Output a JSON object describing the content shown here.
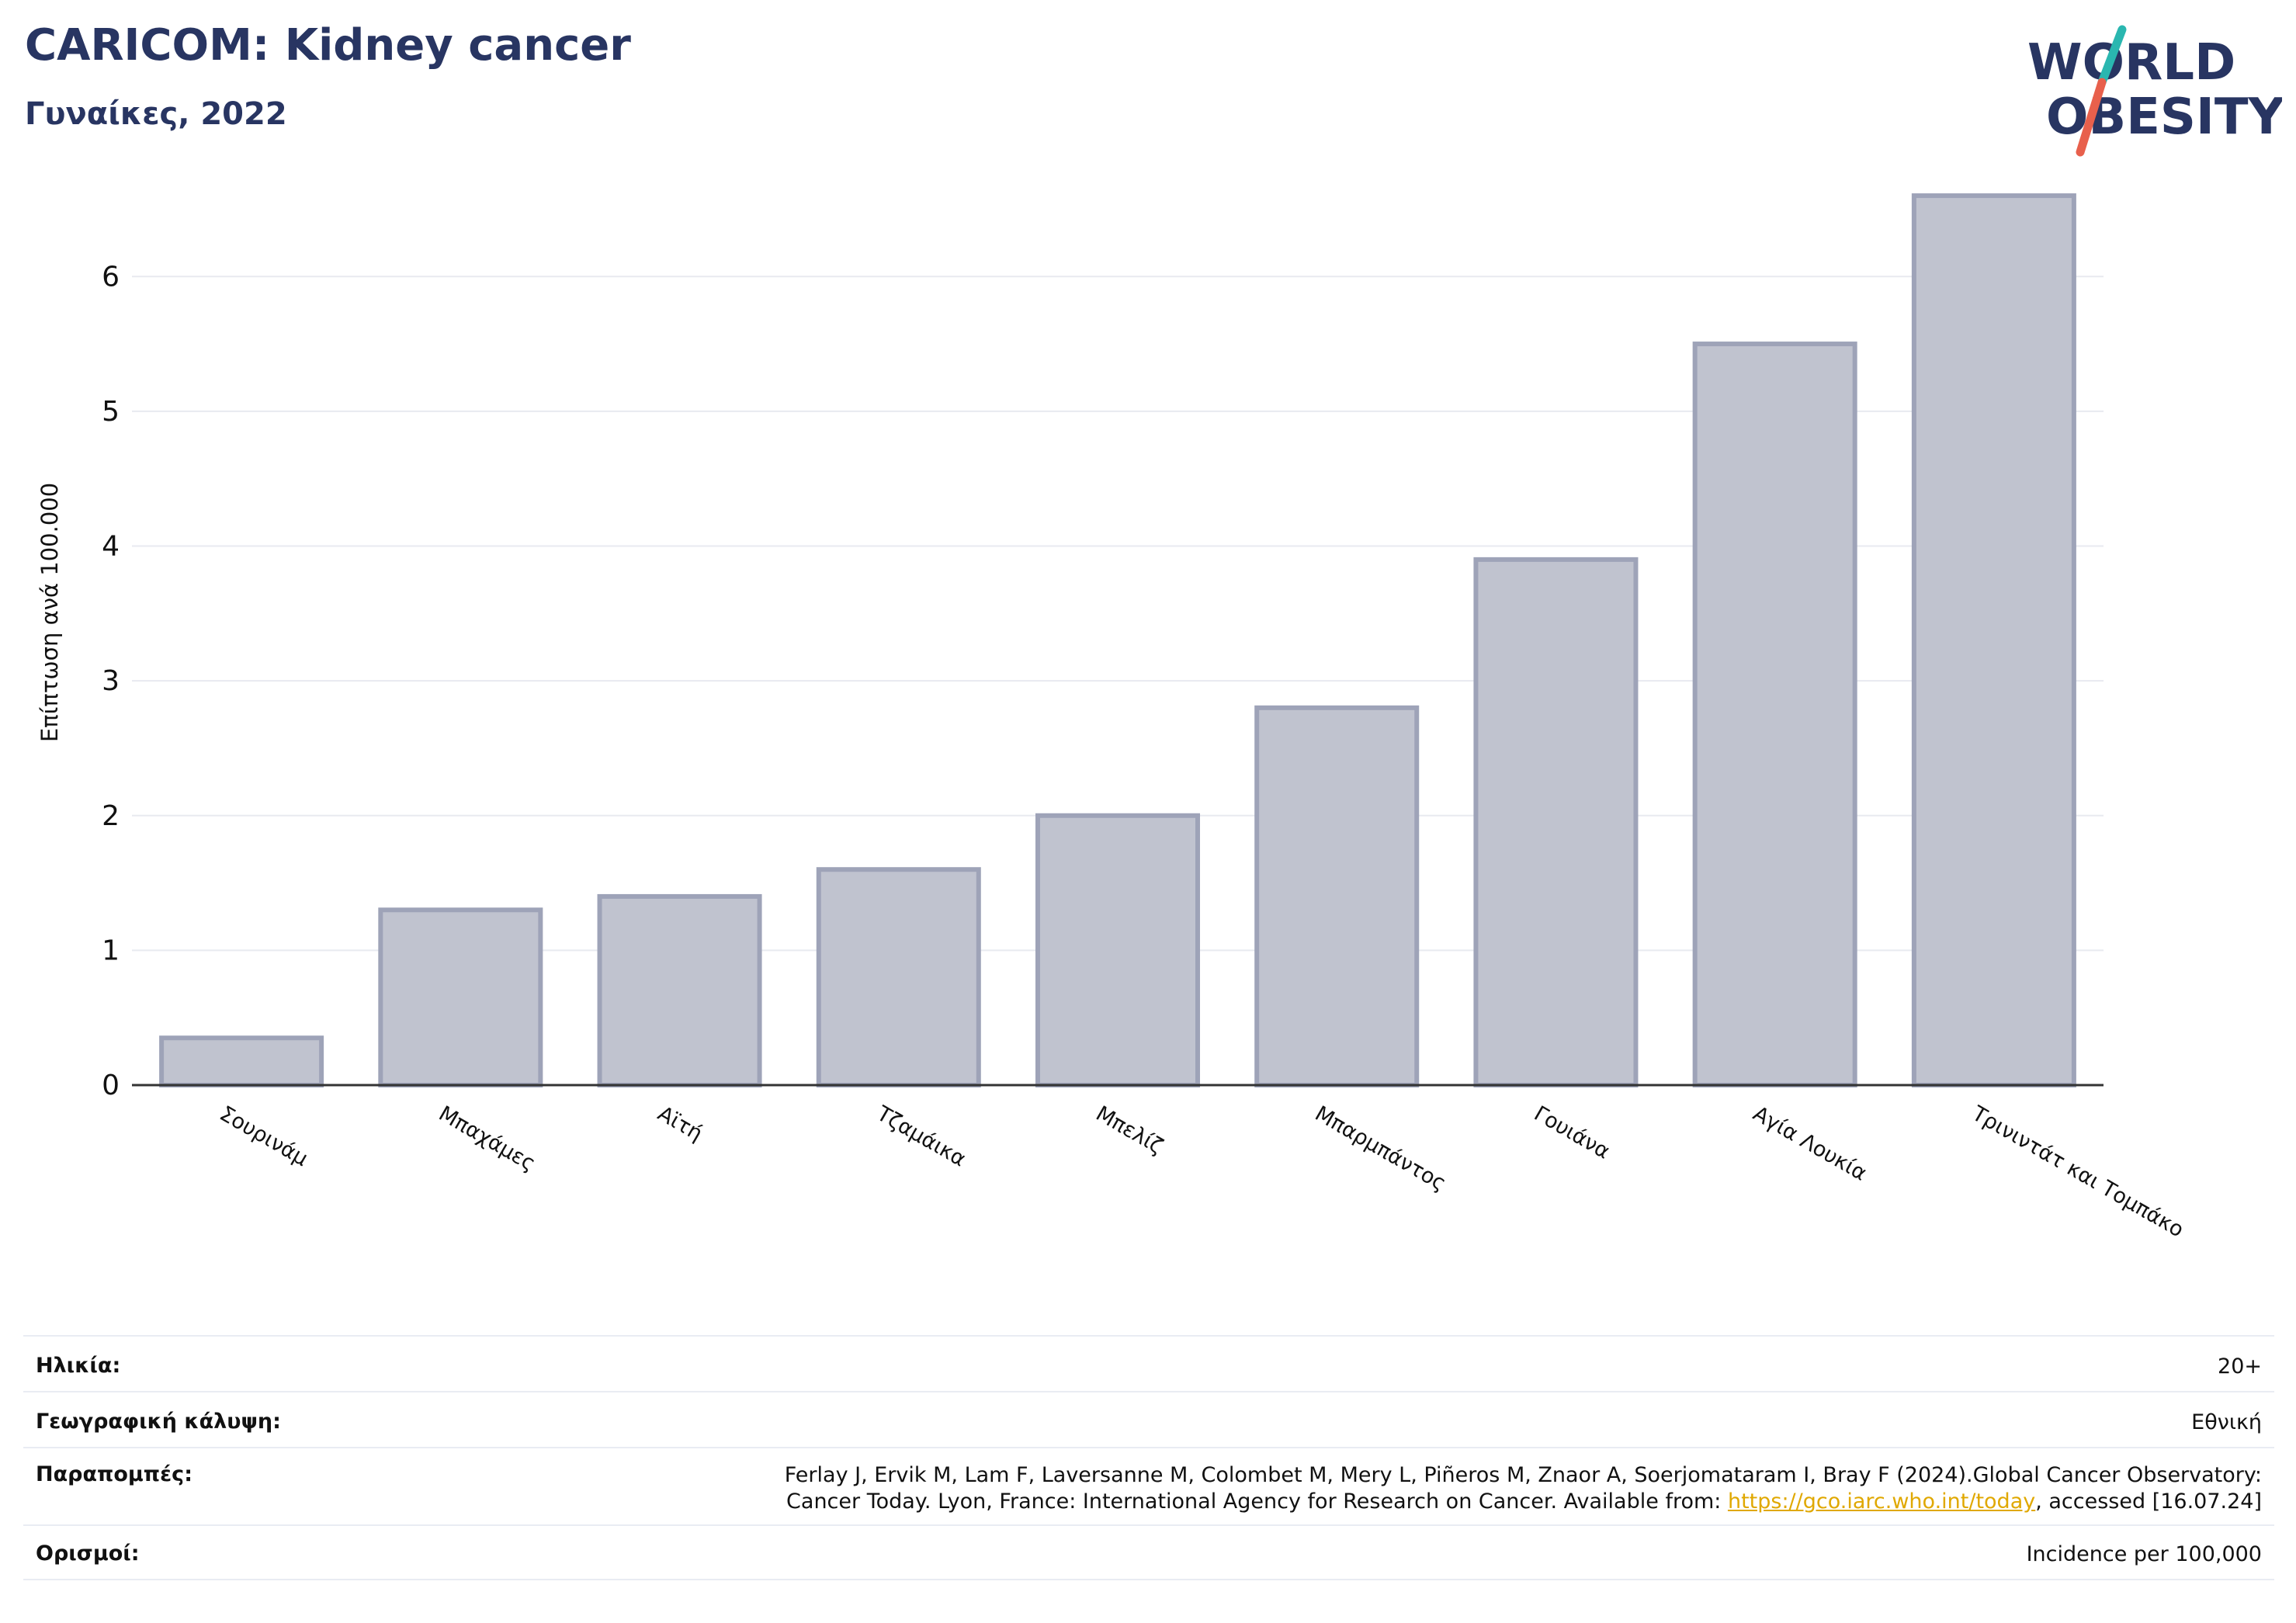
{
  "header": {
    "title": "CARICOM: Kidney cancer",
    "subtitle": "Γυναίκες, 2022"
  },
  "logo": {
    "text_line1": "WORLD",
    "text_line2": "OBESITY",
    "colors": {
      "text": "#283562",
      "slash_teal": "#2ab7b0",
      "slash_red": "#e8604c"
    }
  },
  "chart_data": {
    "type": "bar",
    "categories": [
      "Σουρινάμ",
      "Μπαχάμες",
      "Αϊτή",
      "Τζαμάικα",
      "Μπελίζ",
      "Μπαρμπάντος",
      "Γουιάνα",
      "Αγία Λουκία",
      "Τρινιντάτ και Τομπάκο"
    ],
    "values": [
      0.35,
      1.3,
      1.4,
      1.6,
      2.0,
      2.8,
      3.9,
      5.5,
      6.6
    ],
    "title": "",
    "xlabel": "",
    "ylabel": "Επίπτωση ανά 100.000",
    "ylim": [
      0,
      6.9
    ],
    "yticks": [
      0,
      1,
      2,
      3,
      4,
      5,
      6
    ],
    "grid": true,
    "colors": {
      "bar_fill": "#c0c3cf",
      "bar_stroke": "#9ea3b8",
      "axis": "#333333",
      "grid": "#e8eaf0"
    }
  },
  "info": {
    "age_label": "Ηλικία:",
    "age_value": "20+",
    "coverage_label": "Γεωγραφική κάλυψη:",
    "coverage_value": "Εθνική",
    "refs_label": "Παραπομπές:",
    "refs_line1": "Ferlay J, Ervik M, Lam F, Laversanne M, Colombet M, Mery L, Piñeros M, Znaor A, Soerjomataram I, Bray F (2024).Global Cancer Observatory:",
    "refs_line2_pre": "Cancer Today. Lyon, France: International Agency for Research on Cancer. Available from: ",
    "refs_link": "https://gco.iarc.who.int/today",
    "refs_line2_post": ", accessed [16.07.24]",
    "defs_label": "Ορισμοί:",
    "defs_value": "Incidence per 100,000"
  }
}
